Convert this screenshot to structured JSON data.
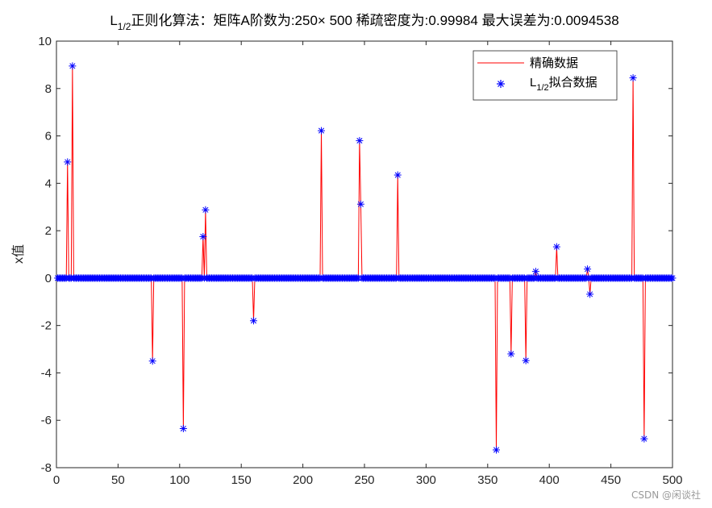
{
  "chart_data": {
    "type": "stem",
    "title": {
      "l_base": "L",
      "l_sub": "1/2",
      "text1": "正则化算法：矩阵A阶数为:250",
      "times": "×",
      "text2": " 500  稀疏密度为:0.99984  最大误差为:0.0094538"
    },
    "ylabel": "x值",
    "xlim": [
      0,
      500
    ],
    "ylim": [
      -8,
      10
    ],
    "xticks": [
      0,
      50,
      100,
      150,
      200,
      250,
      300,
      350,
      400,
      450,
      500
    ],
    "yticks": [
      -8,
      -6,
      -4,
      -2,
      0,
      2,
      4,
      6,
      8,
      10
    ],
    "legend": {
      "position": "top-right",
      "entries": [
        {
          "text": "精确数据",
          "color": "#ff0000",
          "marker": "line"
        },
        {
          "base": "L",
          "sub": "1/2",
          "text": "拟合数据",
          "color": "#0000ff",
          "marker": "asterisk"
        }
      ]
    },
    "n_points": 500,
    "nonzero": [
      {
        "x": 9,
        "y": 4.9
      },
      {
        "x": 13,
        "y": 8.95
      },
      {
        "x": 78,
        "y": -3.5
      },
      {
        "x": 103,
        "y": -6.35
      },
      {
        "x": 119,
        "y": 1.75
      },
      {
        "x": 121,
        "y": 2.88
      },
      {
        "x": 160,
        "y": -1.8
      },
      {
        "x": 215,
        "y": 6.22
      },
      {
        "x": 246,
        "y": 5.8
      },
      {
        "x": 247,
        "y": 3.12
      },
      {
        "x": 277,
        "y": 4.35
      },
      {
        "x": 357,
        "y": -7.25
      },
      {
        "x": 369,
        "y": -3.2
      },
      {
        "x": 381,
        "y": -3.48
      },
      {
        "x": 389,
        "y": 0.28
      },
      {
        "x": 406,
        "y": 1.32
      },
      {
        "x": 431,
        "y": 0.38
      },
      {
        "x": 433,
        "y": -0.68
      },
      {
        "x": 468,
        "y": 8.45
      },
      {
        "x": 477,
        "y": -6.78
      }
    ],
    "colors": {
      "exact": "#ff0000",
      "fit": "#0000ff"
    }
  },
  "watermark": "CSDN @闲谈社"
}
